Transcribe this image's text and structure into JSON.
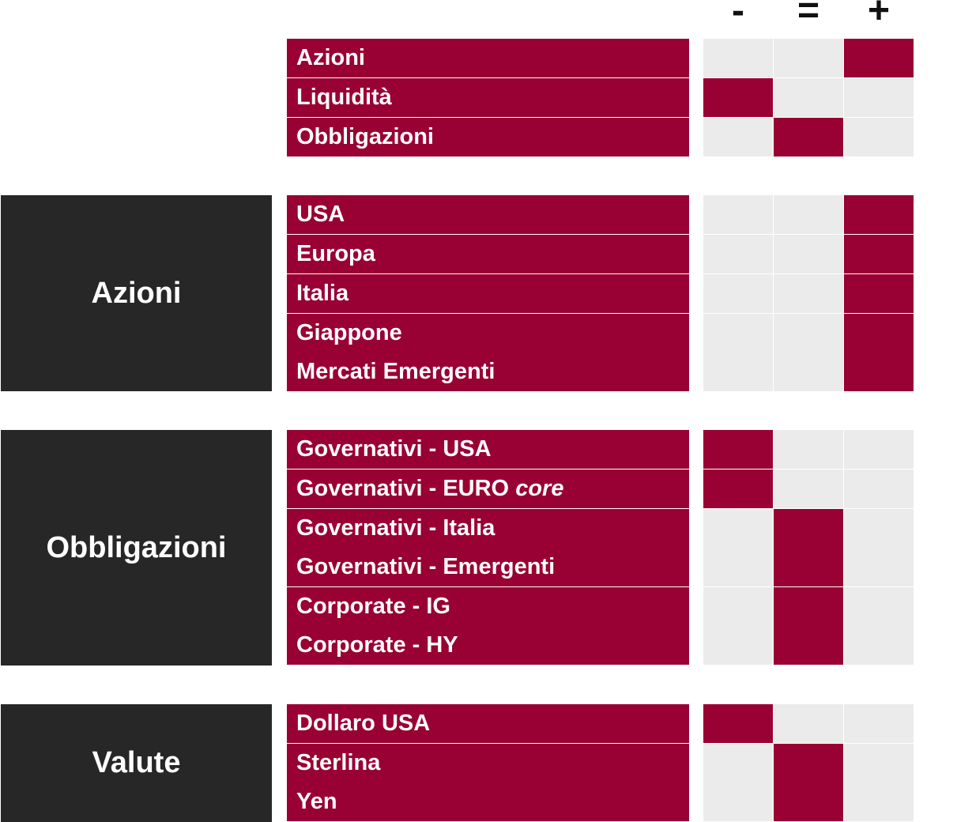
{
  "header": {
    "minus": "-",
    "equal": "=",
    "plus": "+"
  },
  "top_rows": [
    {
      "label": "Azioni",
      "rating": "+"
    },
    {
      "label": "Liquidità",
      "rating": "-"
    },
    {
      "label": "Obbligazioni",
      "rating": "="
    }
  ],
  "groups": [
    {
      "name": "Azioni",
      "rows": [
        {
          "label": "USA",
          "rating": "+"
        },
        {
          "label": "Europa",
          "rating": "+"
        },
        {
          "label": "Italia",
          "rating": "+"
        },
        {
          "label": "Giappone",
          "rating": "+"
        },
        {
          "label": "Mercati Emergenti",
          "rating": "+"
        }
      ]
    },
    {
      "name": "Obbligazioni",
      "rows": [
        {
          "label": "Governativi - USA",
          "rating": "-"
        },
        {
          "label": "Governativi - EURO",
          "label_italic": "core",
          "rating": "-"
        },
        {
          "label": "Governativi - Italia",
          "rating": "="
        },
        {
          "label": "Governativi - Emergenti",
          "rating": "="
        },
        {
          "label": "Corporate - IG",
          "rating": "="
        },
        {
          "label": "Corporate - HY",
          "rating": "="
        }
      ]
    },
    {
      "name": "Valute",
      "rows": [
        {
          "label": "Dollaro USA",
          "rating": "-"
        },
        {
          "label": "Sterlina",
          "rating": "="
        },
        {
          "label": "Yen",
          "rating": "="
        }
      ]
    }
  ],
  "colors": {
    "accent": "#990033",
    "group_bg": "#272727",
    "cell_empty": "#ebebeb"
  }
}
